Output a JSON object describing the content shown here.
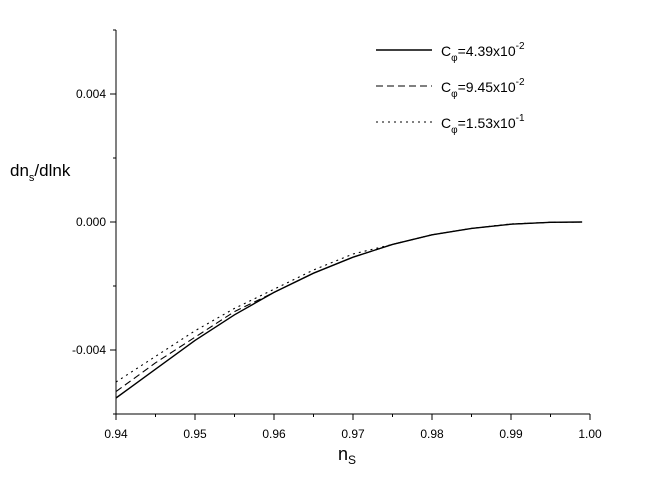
{
  "chart_data": {
    "type": "line",
    "title": "",
    "xlabel_main": "n",
    "xlabel_sub": "S",
    "ylabel_main": "dn",
    "ylabel_sub": "s",
    "ylabel_tail": "/dlnk",
    "xlim": [
      0.94,
      1.0
    ],
    "ylim": [
      -0.006,
      0.006
    ],
    "xticks": [
      0.94,
      0.95,
      0.96,
      0.97,
      0.98,
      0.99,
      1.0
    ],
    "xtick_labels": [
      "0.94",
      "0.95",
      "0.96",
      "0.97",
      "0.98",
      "0.99",
      "1.00"
    ],
    "yticks": [
      -0.004,
      0.0,
      0.004
    ],
    "ytick_labels": [
      "-0.004",
      "0.000",
      "0.004"
    ],
    "grid": false,
    "legend_position": "top-right",
    "series": [
      {
        "name": "C_phi=4.39x10^-2",
        "legend": {
          "base": "C",
          "sub": "φ",
          "mid": "=4.39x10",
          "sup": "-2"
        },
        "style": "solid",
        "x": [
          0.94,
          0.945,
          0.95,
          0.955,
          0.96,
          0.965,
          0.97,
          0.975,
          0.98,
          0.985,
          0.99,
          0.995,
          0.999
        ],
        "y": [
          -0.0055,
          -0.0046,
          -0.0037,
          -0.0029,
          -0.0022,
          -0.0016,
          -0.0011,
          -0.0007,
          -0.0004,
          -0.0002,
          -7e-05,
          -1e-05,
          0.0
        ]
      },
      {
        "name": "C_phi=9.45x10^-2",
        "legend": {
          "base": "C",
          "sub": "φ",
          "mid": "=9.45x10",
          "sup": "-2"
        },
        "style": "dashed",
        "x": [
          0.94,
          0.945,
          0.95,
          0.955,
          0.96,
          0.965,
          0.97,
          0.975,
          0.98,
          0.985,
          0.99,
          0.995,
          0.999
        ],
        "y": [
          -0.0053,
          -0.0044,
          -0.0036,
          -0.0028,
          -0.0022,
          -0.0016,
          -0.0011,
          -0.0007,
          -0.0004,
          -0.0002,
          -7e-05,
          -1e-05,
          0.0
        ]
      },
      {
        "name": "C_phi=1.53x10^-1",
        "legend": {
          "base": "C",
          "sub": "φ",
          "mid": "=1.53x10",
          "sup": "-1"
        },
        "style": "dotted",
        "x": [
          0.94,
          0.945,
          0.95,
          0.955,
          0.96,
          0.965,
          0.97,
          0.975,
          0.98,
          0.985,
          0.99,
          0.995,
          0.999
        ],
        "y": [
          -0.005,
          -0.0042,
          -0.0034,
          -0.0027,
          -0.0021,
          -0.0015,
          -0.001,
          -0.0007,
          -0.0004,
          -0.0002,
          -6e-05,
          -1e-05,
          0.0
        ]
      }
    ]
  }
}
